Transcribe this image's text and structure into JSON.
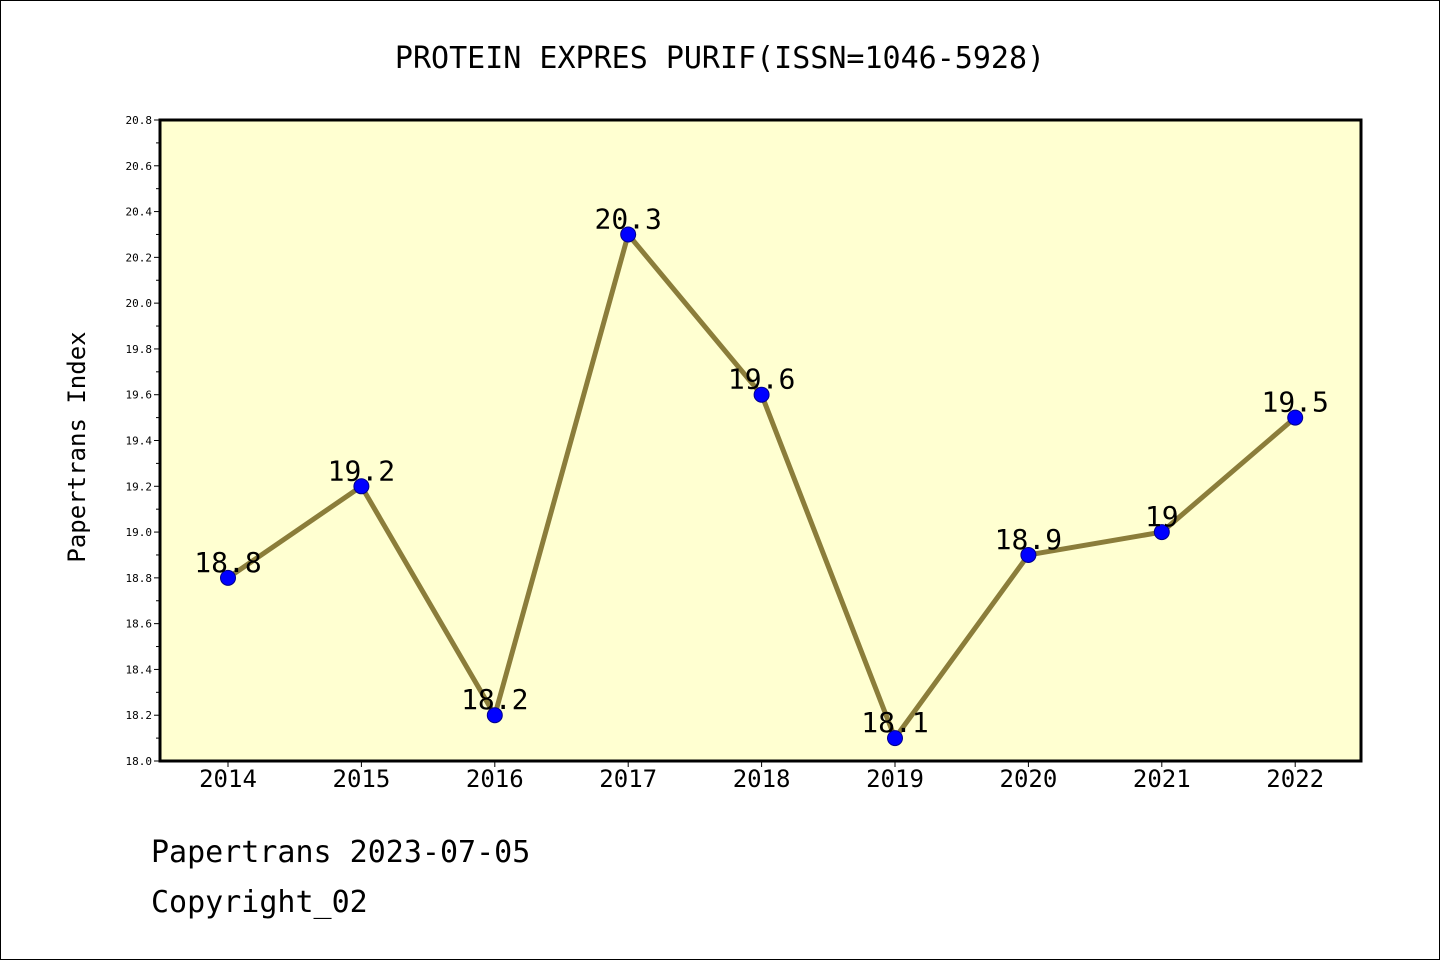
{
  "chart_data": {
    "type": "line",
    "title": "PROTEIN EXPRES PURIF(ISSN=1046-5928)",
    "ylabel": "Papertrans Index",
    "xlabel": "",
    "categories": [
      "2014",
      "2015",
      "2016",
      "2017",
      "2018",
      "2019",
      "2020",
      "2021",
      "2022"
    ],
    "values": [
      18.8,
      19.2,
      18.2,
      20.3,
      19.6,
      18.1,
      18.9,
      19.0,
      19.5
    ],
    "data_labels": [
      "18.8",
      "19.2",
      "18.2",
      "20.3",
      "19.6",
      "18.1",
      "18.9",
      "19",
      "19.5"
    ],
    "ylim": [
      18.0,
      20.8
    ],
    "yticks": [
      "18.0",
      "18.2",
      "18.4",
      "18.6",
      "18.8",
      "19.0",
      "19.2",
      "19.4",
      "19.6",
      "19.8",
      "20.0",
      "20.2",
      "20.4",
      "20.6",
      "20.8"
    ],
    "grid": false,
    "colors": {
      "plot_background": "#ffffd1",
      "line": "#8b7d3a",
      "marker": "#0000ff"
    }
  },
  "footer": {
    "date_line": "Papertrans 2023-07-05",
    "copyright": "Copyright_02"
  }
}
